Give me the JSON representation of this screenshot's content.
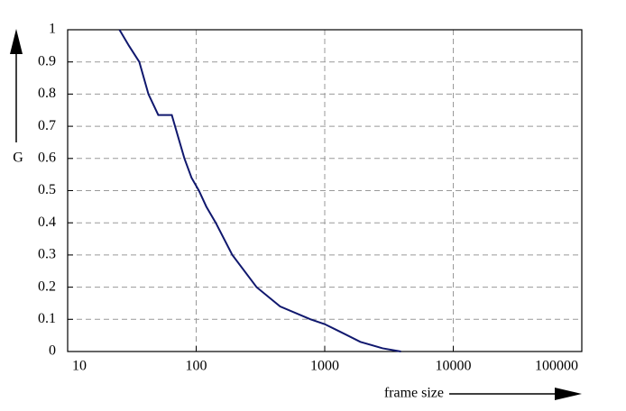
{
  "chart_data": {
    "type": "line",
    "x_label": "frame size",
    "y_label": "G",
    "x_scale": "log",
    "grid": true,
    "xlim": [
      10,
      100000
    ],
    "xticks": [
      10,
      100,
      1000,
      10000,
      100000
    ],
    "ylim": [
      0,
      1
    ],
    "yticks": [
      0,
      0.1,
      0.2,
      0.3,
      0.4,
      0.5,
      0.6,
      0.7,
      0.8,
      0.9,
      1
    ],
    "series": [
      {
        "color": "#10186e",
        "x": [
          25.3,
          30,
          36.1,
          42.5,
          50.7,
          64.6,
          72,
          81,
          92,
          105,
          120,
          142,
          191,
          295,
          450,
          776,
          1000,
          1265,
          1893,
          2820,
          3917
        ],
        "values": [
          1,
          0.95,
          0.9,
          0.8,
          0.735,
          0.735,
          0.67,
          0.6,
          0.54,
          0.5,
          0.45,
          0.4,
          0.3,
          0.2,
          0.14,
          0.1,
          0.085,
          0.065,
          0.03,
          0.01,
          0
        ]
      }
    ]
  }
}
